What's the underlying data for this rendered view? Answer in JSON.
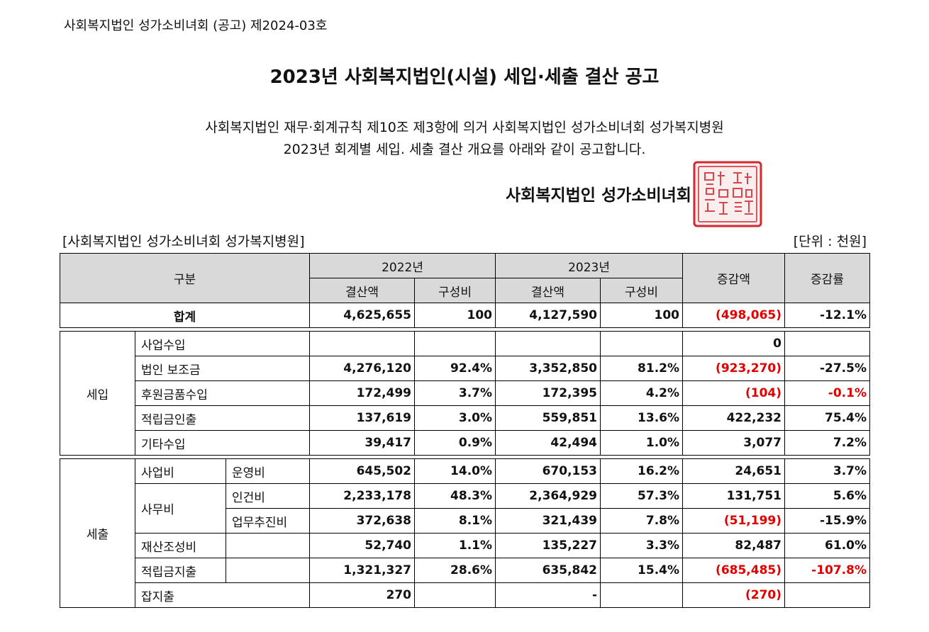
{
  "notice_number": "사회복지법인 성가소비녀회 (공고) 제2024-03호",
  "title": "2023년 사회복지법인(시설) 세입·세출 결산 공고",
  "body_line1": "사회복지법인 재무·회계규칙 제10조 제3항에 의거 사회복지법인 성가소비녀회 성가복지병원",
  "body_line2": "2023년 회계별 세입. 세출 결산 개요를 아래와 같이 공고합니다.",
  "signature": "사회복지법인 성가소비녀회",
  "seal_icon": "red-official-seal",
  "table_caption": "[사회복지법인 성가소비녀회 성가복지병원]",
  "unit": "[단위 : 천원]",
  "colors": {
    "negative": "#e00000",
    "header_bg": "#d9d9d9",
    "seal": "#d2282f"
  },
  "table": {
    "h_category": "구분",
    "h_2022": "2022년",
    "h_2023": "2023년",
    "h_amount": "결산액",
    "h_ratio": "구성비",
    "h_change": "증감액",
    "h_rate": "증감률",
    "total": {
      "label": "합계",
      "a2022": "4,625,655",
      "r2022": "100",
      "a2023": "4,127,590",
      "r2023": "100",
      "change": "(498,065)",
      "rate": "-12.1%"
    },
    "revenue_label": "세입",
    "revenue": [
      {
        "label": "사업수입",
        "a2022": "",
        "r2022": "",
        "a2023": "",
        "r2023": "",
        "change": "0",
        "rate": ""
      },
      {
        "label": "법인 보조금",
        "a2022": "4,276,120",
        "r2022": "92.4%",
        "a2023": "3,352,850",
        "r2023": "81.2%",
        "change": "(923,270)",
        "rate": "-27.5%"
      },
      {
        "label": "후원금품수입",
        "a2022": "172,499",
        "r2022": "3.7%",
        "a2023": "172,395",
        "r2023": "4.2%",
        "change": "(104)",
        "rate": "-0.1%"
      },
      {
        "label": "적립금인출",
        "a2022": "137,619",
        "r2022": "3.0%",
        "a2023": "559,851",
        "r2023": "13.6%",
        "change": "422,232",
        "rate": "75.4%"
      },
      {
        "label": "기타수입",
        "a2022": "39,417",
        "r2022": "0.9%",
        "a2023": "42,494",
        "r2023": "1.0%",
        "change": "3,077",
        "rate": "7.2%"
      }
    ],
    "expense_label": "세출",
    "expense": [
      {
        "label": "사업비",
        "sub": "운영비",
        "a2022": "645,502",
        "r2022": "14.0%",
        "a2023": "670,153",
        "r2023": "16.2%",
        "change": "24,651",
        "rate": "3.7%"
      },
      {
        "label": "사무비",
        "sub": "인건비",
        "a2022": "2,233,178",
        "r2022": "48.3%",
        "a2023": "2,364,929",
        "r2023": "57.3%",
        "change": "131,751",
        "rate": "5.6%"
      },
      {
        "label": "",
        "sub": "업무추진비",
        "a2022": "372,638",
        "r2022": "8.1%",
        "a2023": "321,439",
        "r2023": "7.8%",
        "change": "(51,199)",
        "rate": "-15.9%"
      },
      {
        "label": "재산조성비",
        "sub": "",
        "a2022": "52,740",
        "r2022": "1.1%",
        "a2023": "135,227",
        "r2023": "3.3%",
        "change": "82,487",
        "rate": "61.0%"
      },
      {
        "label": "적립금지출",
        "sub": "",
        "a2022": "1,321,327",
        "r2022": "28.6%",
        "a2023": "635,842",
        "r2023": "15.4%",
        "change": "(685,485)",
        "rate": "-107.8%"
      },
      {
        "label": "잡지출",
        "sub": "",
        "a2022": "270",
        "r2022": "",
        "a2023": "-",
        "r2023": "",
        "change": "(270)",
        "rate": ""
      }
    ]
  }
}
